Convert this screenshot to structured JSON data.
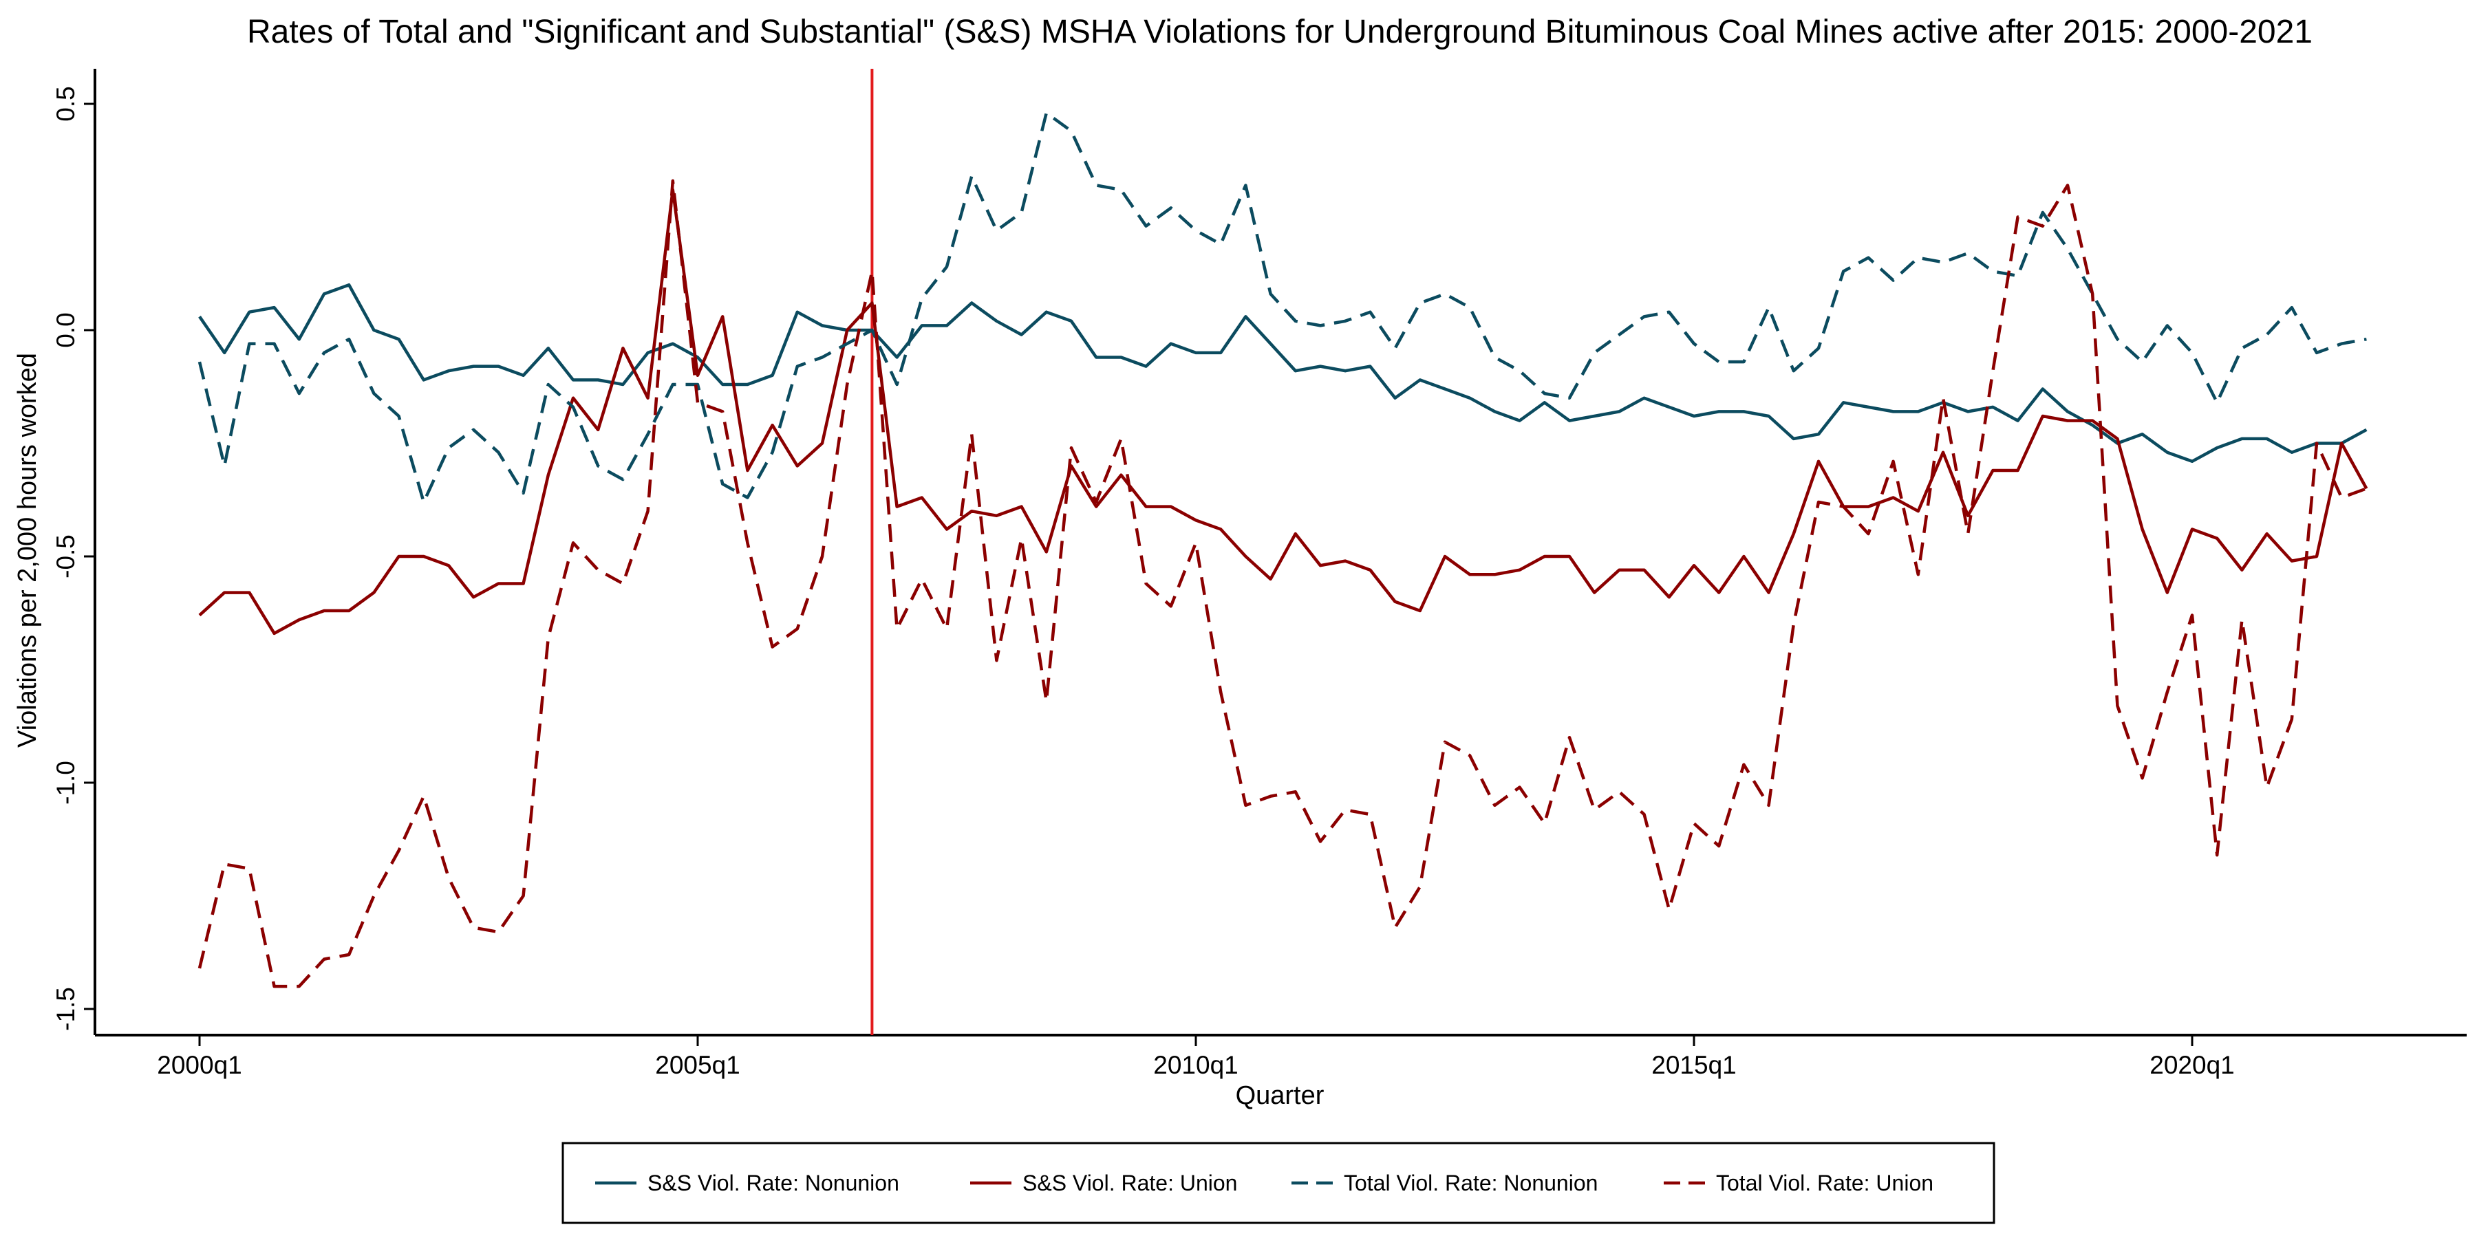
{
  "chart_data": {
    "type": "line",
    "title": "Rates of Total and \"Significant and Substantial\" (S&S) MSHA Violations for Underground Bituminous Coal Mines active after 2015: 2000-2021",
    "xlabel": "Quarter",
    "ylabel": "Violations per 2,000 hours worked",
    "x_start": "2000q1",
    "x_end": "2021q4",
    "x_ticks": [
      "2000q1",
      "2005q1",
      "2010q1",
      "2015q1",
      "2020q1"
    ],
    "xlim": [
      "1999q3",
      "2023q2"
    ],
    "y_ticks": [
      0.5,
      0.0,
      -0.5,
      -1.0,
      -1.5
    ],
    "y_tick_labels": [
      "0.5",
      "0.0",
      "-0.5",
      "-1.0",
      "-1.5"
    ],
    "ylim": [
      -1.55,
      0.58
    ],
    "grid": false,
    "legend_position": "bottom",
    "reference_line": {
      "x": "2006q4",
      "color": "#e31a1c"
    },
    "series": [
      {
        "name": "S&S Viol. Rate: Nonunion",
        "color": "#0b4b5f",
        "dash": "solid",
        "values": [
          0.03,
          -0.05,
          0.04,
          0.05,
          -0.02,
          0.08,
          0.1,
          0.0,
          -0.02,
          -0.11,
          -0.09,
          -0.08,
          -0.08,
          -0.1,
          -0.04,
          -0.11,
          -0.11,
          -0.12,
          -0.05,
          -0.03,
          -0.06,
          -0.12,
          -0.12,
          -0.1,
          0.04,
          0.01,
          0.0,
          0.0,
          -0.06,
          0.01,
          0.01,
          0.06,
          0.02,
          -0.01,
          0.04,
          0.02,
          -0.06,
          -0.06,
          -0.08,
          -0.03,
          -0.05,
          -0.05,
          0.03,
          -0.03,
          -0.09,
          -0.08,
          -0.09,
          -0.08,
          -0.15,
          -0.11,
          -0.13,
          -0.15,
          -0.18,
          -0.2,
          -0.16,
          -0.2,
          -0.19,
          -0.18,
          -0.15,
          -0.17,
          -0.19,
          -0.18,
          -0.18,
          -0.19,
          -0.24,
          -0.23,
          -0.16,
          -0.17,
          -0.18,
          -0.18,
          -0.16,
          -0.18,
          -0.17,
          -0.2,
          -0.13,
          -0.18,
          -0.21,
          -0.25,
          -0.23,
          -0.27,
          -0.29,
          -0.26,
          -0.24,
          -0.24,
          -0.27,
          -0.25,
          -0.25,
          -0.22
        ]
      },
      {
        "name": "S&S Viol. Rate: Union",
        "color": "#8b0000",
        "dash": "solid",
        "values": [
          -0.63,
          -0.58,
          -0.58,
          -0.67,
          -0.64,
          -0.62,
          -0.62,
          -0.58,
          -0.5,
          -0.5,
          -0.52,
          -0.59,
          -0.56,
          -0.56,
          -0.32,
          -0.15,
          -0.22,
          -0.04,
          -0.15,
          0.31,
          -0.1,
          0.03,
          -0.31,
          -0.21,
          -0.3,
          -0.25,
          0.0,
          0.06,
          -0.39,
          -0.37,
          -0.44,
          -0.4,
          -0.41,
          -0.39,
          -0.49,
          -0.3,
          -0.39,
          -0.32,
          -0.39,
          -0.39,
          -0.42,
          -0.44,
          -0.5,
          -0.55,
          -0.45,
          -0.52,
          -0.51,
          -0.53,
          -0.6,
          -0.62,
          -0.5,
          -0.54,
          -0.54,
          -0.53,
          -0.5,
          -0.5,
          -0.58,
          -0.53,
          -0.53,
          -0.59,
          -0.52,
          -0.58,
          -0.5,
          -0.58,
          -0.45,
          -0.29,
          -0.39,
          -0.39,
          -0.37,
          -0.4,
          -0.27,
          -0.41,
          -0.31,
          -0.31,
          -0.19,
          -0.2,
          -0.2,
          -0.24,
          -0.44,
          -0.58,
          -0.44,
          -0.46,
          -0.53,
          -0.45,
          -0.51,
          -0.5,
          -0.25,
          -0.35
        ]
      },
      {
        "name": "Total Viol. Rate: Nonunion",
        "color": "#0b4b5f",
        "dash": "dashed",
        "values": [
          -0.07,
          -0.3,
          -0.03,
          -0.03,
          -0.14,
          -0.05,
          -0.02,
          -0.14,
          -0.19,
          -0.38,
          -0.26,
          -0.22,
          -0.27,
          -0.36,
          -0.12,
          -0.17,
          -0.3,
          -0.33,
          -0.23,
          -0.12,
          -0.12,
          -0.34,
          -0.37,
          -0.27,
          -0.08,
          -0.06,
          -0.03,
          0.0,
          -0.12,
          0.07,
          0.14,
          0.34,
          0.22,
          0.26,
          0.48,
          0.44,
          0.32,
          0.31,
          0.23,
          0.27,
          0.22,
          0.19,
          0.32,
          0.08,
          0.02,
          0.01,
          0.02,
          0.04,
          -0.04,
          0.06,
          0.08,
          0.05,
          -0.06,
          -0.09,
          -0.14,
          -0.15,
          -0.05,
          -0.01,
          0.03,
          0.04,
          -0.03,
          -0.07,
          -0.07,
          0.05,
          -0.09,
          -0.04,
          0.13,
          0.16,
          0.11,
          0.16,
          0.15,
          0.17,
          0.13,
          0.12,
          0.26,
          0.18,
          0.08,
          -0.02,
          -0.07,
          0.01,
          -0.05,
          -0.16,
          -0.04,
          -0.01,
          0.05,
          -0.05,
          -0.03,
          -0.02
        ]
      },
      {
        "name": "Total Viol. Rate: Union",
        "color": "#8b0000",
        "dash": "dashed",
        "values": [
          -1.41,
          -1.18,
          -1.19,
          -1.45,
          -1.45,
          -1.39,
          -1.38,
          -1.25,
          -1.15,
          -1.03,
          -1.21,
          -1.32,
          -1.33,
          -1.25,
          -0.68,
          -0.47,
          -0.53,
          -0.56,
          -0.4,
          0.33,
          -0.16,
          -0.18,
          -0.47,
          -0.7,
          -0.66,
          -0.5,
          -0.12,
          0.13,
          -0.66,
          -0.55,
          -0.66,
          -0.23,
          -0.73,
          -0.46,
          -0.82,
          -0.26,
          -0.38,
          -0.24,
          -0.56,
          -0.61,
          -0.47,
          -0.8,
          -1.05,
          -1.03,
          -1.02,
          -1.13,
          -1.06,
          -1.07,
          -1.32,
          -1.23,
          -0.91,
          -0.94,
          -1.05,
          -1.01,
          -1.09,
          -0.9,
          -1.06,
          -1.02,
          -1.07,
          -1.28,
          -1.09,
          -1.14,
          -0.96,
          -1.05,
          -0.65,
          -0.38,
          -0.39,
          -0.45,
          -0.29,
          -0.54,
          -0.15,
          -0.45,
          -0.09,
          0.25,
          0.23,
          0.32,
          0.08,
          -0.83,
          -0.99,
          -0.8,
          -0.63,
          -1.16,
          -0.64,
          -1.01,
          -0.86,
          -0.25,
          -0.37,
          -0.35
        ]
      }
    ]
  }
}
